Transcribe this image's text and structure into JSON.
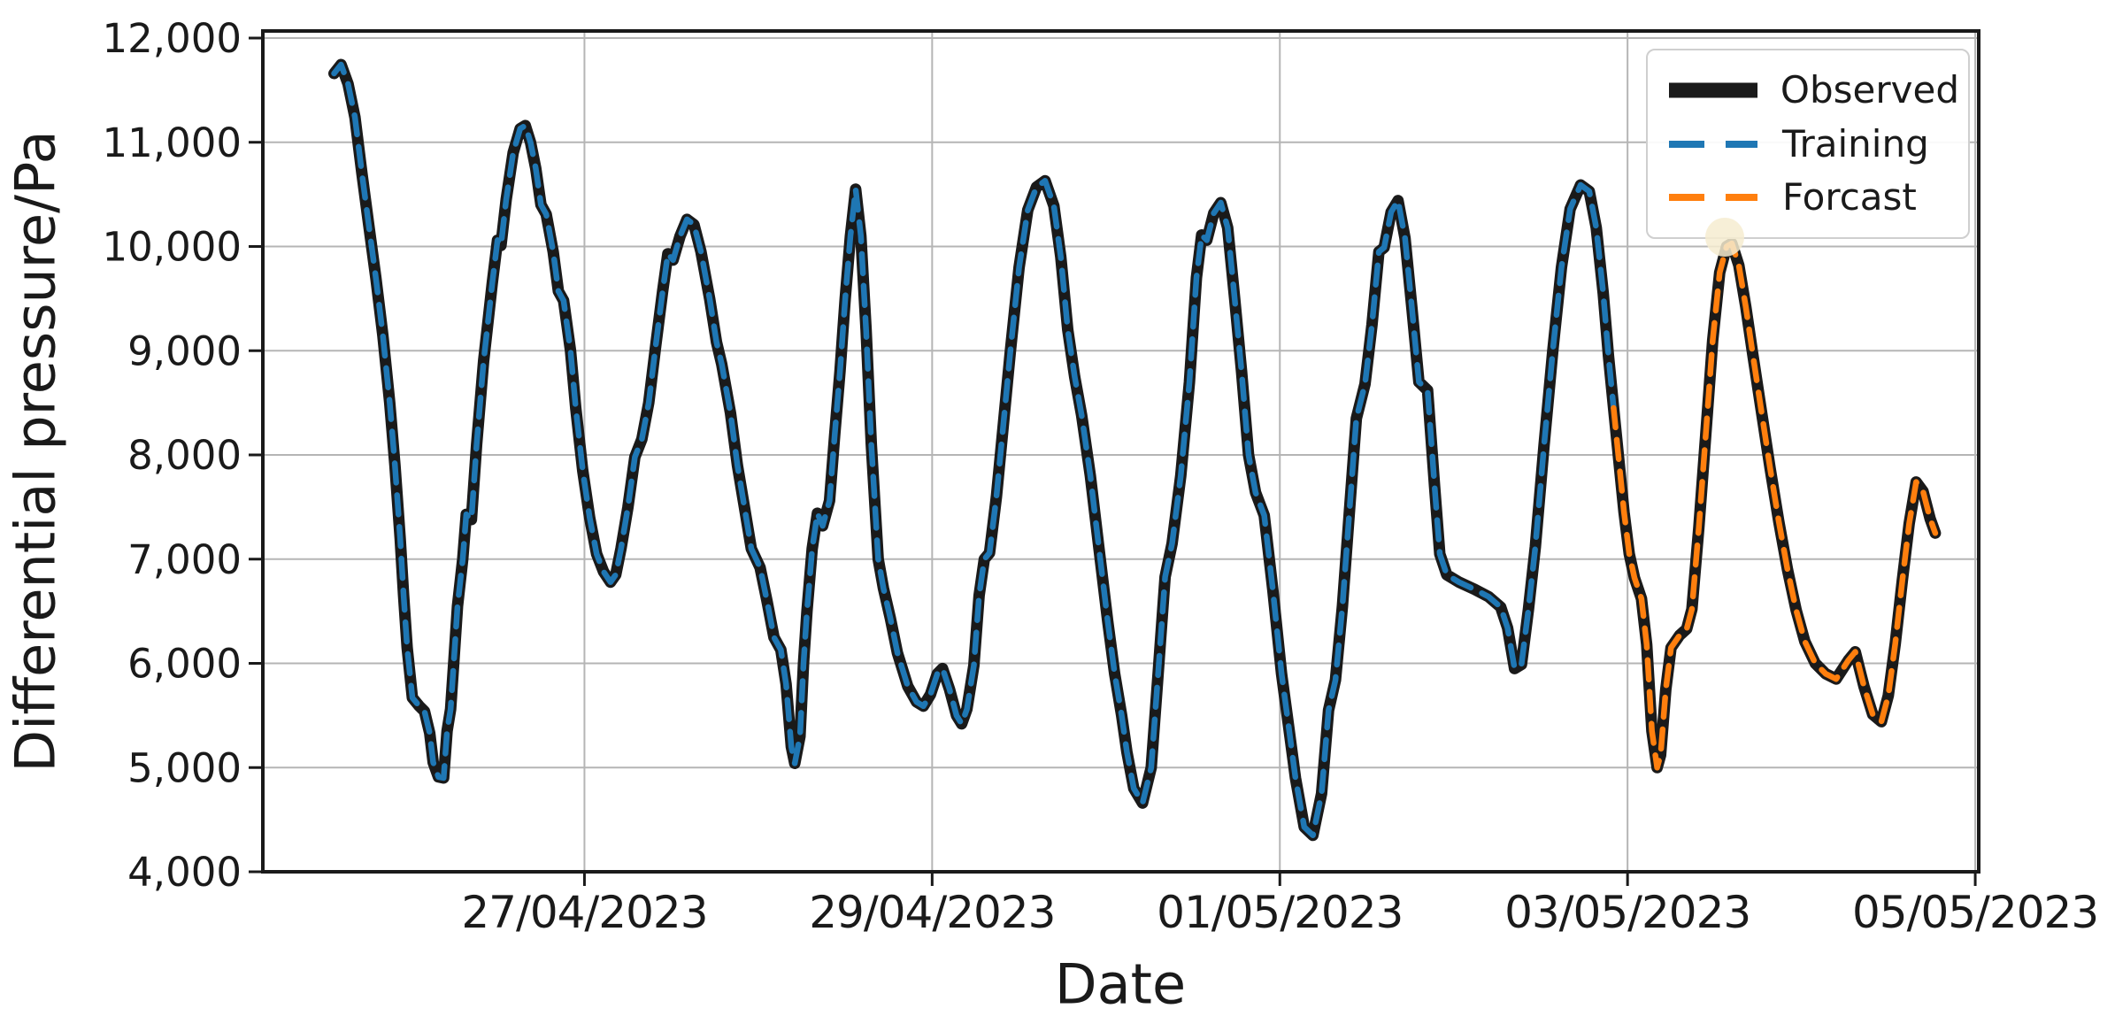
{
  "figure": {
    "background": "#ffffff",
    "grid_color": "#b5b5b5",
    "spine_color": "#1a1a1a",
    "text_color": "#1a1a1a"
  },
  "legend": {
    "position": "upper right",
    "items": [
      {
        "label": "Observed",
        "color": "#1a1a1a",
        "style": "solid"
      },
      {
        "label": "Training",
        "color": "#1f77b4",
        "style": "dashed"
      },
      {
        "label": "Forcast",
        "color": "#ff7f0e",
        "style": "dashed"
      }
    ]
  },
  "chart_data": {
    "type": "line",
    "title": "",
    "xlabel": "Date",
    "ylabel": "Differential pressure/Pa",
    "x_unit": "days since 27/04/2023 00:00",
    "xlim": [
      -1.85,
      8.02
    ],
    "ylim": [
      4000,
      12000
    ],
    "grid": true,
    "legend_position": "upper right",
    "xticks": [
      {
        "t": 0,
        "label": "27/04/2023"
      },
      {
        "t": 2,
        "label": "29/04/2023"
      },
      {
        "t": 4,
        "label": "01/05/2023"
      },
      {
        "t": 6,
        "label": "03/05/2023"
      },
      {
        "t": 8,
        "label": "05/05/2023"
      }
    ],
    "yticks": [
      {
        "v": 4000,
        "label": "4,000"
      },
      {
        "v": 5000,
        "label": "5,000"
      },
      {
        "v": 6000,
        "label": "6,000"
      },
      {
        "v": 7000,
        "label": "7,000"
      },
      {
        "v": 8000,
        "label": "8,000"
      },
      {
        "v": 9000,
        "label": "9,000"
      },
      {
        "v": 10000,
        "label": "10,000"
      },
      {
        "v": 11000,
        "label": "11,000"
      },
      {
        "v": 12000,
        "label": "12,000"
      }
    ],
    "series": [
      {
        "name": "Observed",
        "color": "#1a1a1a",
        "line": "solid",
        "width": 13,
        "points": "training+forecast"
      },
      {
        "name": "Training",
        "color": "#1f77b4",
        "line": "dashed",
        "width": 6.5,
        "points": "training"
      },
      {
        "name": "Forcast",
        "color": "#ff7f0e",
        "line": "dashed",
        "width": 6.5,
        "points": "forecast"
      }
    ],
    "annotations": [
      {
        "type": "circle-marker",
        "t": 6.56,
        "value": 10090,
        "color": "#f6ecd0"
      }
    ],
    "points": {
      "training": [
        [
          -1.44,
          11660
        ],
        [
          -1.4,
          11745
        ],
        [
          -1.36,
          11560
        ],
        [
          -1.32,
          11240
        ],
        [
          -1.28,
          10700
        ],
        [
          -1.24,
          10200
        ],
        [
          -1.2,
          9700
        ],
        [
          -1.16,
          9150
        ],
        [
          -1.12,
          8500
        ],
        [
          -1.09,
          7900
        ],
        [
          -1.06,
          7200
        ],
        [
          -1.04,
          6650
        ],
        [
          -1.02,
          6150
        ],
        [
          -0.99,
          5670
        ],
        [
          -0.95,
          5590
        ],
        [
          -0.92,
          5540
        ],
        [
          -0.89,
          5330
        ],
        [
          -0.87,
          5050
        ],
        [
          -0.84,
          4910
        ],
        [
          -0.81,
          4900
        ],
        [
          -0.79,
          5350
        ],
        [
          -0.77,
          5560
        ],
        [
          -0.75,
          6050
        ],
        [
          -0.73,
          6550
        ],
        [
          -0.7,
          7000
        ],
        [
          -0.68,
          7430
        ],
        [
          -0.65,
          7380
        ],
        [
          -0.62,
          8100
        ],
        [
          -0.58,
          8900
        ],
        [
          -0.53,
          9650
        ],
        [
          -0.5,
          10060
        ],
        [
          -0.48,
          10010
        ],
        [
          -0.45,
          10450
        ],
        [
          -0.41,
          10900
        ],
        [
          -0.37,
          11130
        ],
        [
          -0.34,
          11160
        ],
        [
          -0.31,
          11000
        ],
        [
          -0.28,
          10750
        ],
        [
          -0.25,
          10400
        ],
        [
          -0.22,
          10310
        ],
        [
          -0.18,
          9950
        ],
        [
          -0.15,
          9570
        ],
        [
          -0.12,
          9480
        ],
        [
          -0.08,
          9000
        ],
        [
          -0.05,
          8450
        ],
        [
          -0.01,
          7850
        ],
        [
          0.03,
          7400
        ],
        [
          0.07,
          7050
        ],
        [
          0.11,
          6880
        ],
        [
          0.15,
          6780
        ],
        [
          0.18,
          6850
        ],
        [
          0.21,
          7100
        ],
        [
          0.25,
          7500
        ],
        [
          0.29,
          7980
        ],
        [
          0.33,
          8150
        ],
        [
          0.37,
          8500
        ],
        [
          0.41,
          9050
        ],
        [
          0.45,
          9570
        ],
        [
          0.48,
          9930
        ],
        [
          0.51,
          9870
        ],
        [
          0.55,
          10100
        ],
        [
          0.59,
          10260
        ],
        [
          0.63,
          10210
        ],
        [
          0.67,
          9950
        ],
        [
          0.72,
          9500
        ],
        [
          0.76,
          9080
        ],
        [
          0.79,
          8870
        ],
        [
          0.84,
          8400
        ],
        [
          0.88,
          7900
        ],
        [
          0.92,
          7500
        ],
        [
          0.96,
          7100
        ],
        [
          1.01,
          6920
        ],
        [
          1.05,
          6600
        ],
        [
          1.09,
          6250
        ],
        [
          1.13,
          6130
        ],
        [
          1.16,
          5800
        ],
        [
          1.19,
          5200
        ],
        [
          1.21,
          5040
        ],
        [
          1.24,
          5300
        ],
        [
          1.26,
          6000
        ],
        [
          1.28,
          6500
        ],
        [
          1.31,
          7100
        ],
        [
          1.34,
          7440
        ],
        [
          1.37,
          7320
        ],
        [
          1.41,
          7560
        ],
        [
          1.44,
          8200
        ],
        [
          1.47,
          8800
        ],
        [
          1.5,
          9500
        ],
        [
          1.53,
          10100
        ],
        [
          1.56,
          10550
        ],
        [
          1.59,
          10100
        ],
        [
          1.62,
          9200
        ],
        [
          1.65,
          8100
        ],
        [
          1.69,
          7000
        ],
        [
          1.72,
          6720
        ],
        [
          1.76,
          6430
        ],
        [
          1.8,
          6100
        ],
        [
          1.86,
          5780
        ],
        [
          1.91,
          5630
        ],
        [
          1.95,
          5590
        ],
        [
          1.99,
          5700
        ],
        [
          2.03,
          5900
        ],
        [
          2.06,
          5950
        ],
        [
          2.1,
          5750
        ],
        [
          2.14,
          5500
        ],
        [
          2.17,
          5420
        ],
        [
          2.2,
          5560
        ],
        [
          2.24,
          5980
        ],
        [
          2.27,
          6650
        ],
        [
          2.3,
          7000
        ],
        [
          2.33,
          7060
        ],
        [
          2.37,
          7600
        ],
        [
          2.41,
          8300
        ],
        [
          2.45,
          9000
        ],
        [
          2.5,
          9800
        ],
        [
          2.55,
          10350
        ],
        [
          2.6,
          10570
        ],
        [
          2.65,
          10630
        ],
        [
          2.7,
          10390
        ],
        [
          2.74,
          9900
        ],
        [
          2.78,
          9200
        ],
        [
          2.82,
          8750
        ],
        [
          2.86,
          8380
        ],
        [
          2.91,
          7800
        ],
        [
          2.96,
          7100
        ],
        [
          3.01,
          6400
        ],
        [
          3.05,
          5900
        ],
        [
          3.09,
          5500
        ],
        [
          3.12,
          5150
        ],
        [
          3.16,
          4800
        ],
        [
          3.21,
          4660
        ],
        [
          3.26,
          5000
        ],
        [
          3.3,
          5900
        ],
        [
          3.34,
          6830
        ],
        [
          3.38,
          7150
        ],
        [
          3.43,
          7800
        ],
        [
          3.48,
          8700
        ],
        [
          3.52,
          9700
        ],
        [
          3.55,
          10110
        ],
        [
          3.58,
          10060
        ],
        [
          3.62,
          10320
        ],
        [
          3.66,
          10420
        ],
        [
          3.7,
          10180
        ],
        [
          3.74,
          9500
        ],
        [
          3.78,
          8800
        ],
        [
          3.82,
          8000
        ],
        [
          3.86,
          7640
        ],
        [
          3.91,
          7420
        ],
        [
          3.96,
          6700
        ],
        [
          4.01,
          5900
        ],
        [
          4.05,
          5400
        ],
        [
          4.09,
          4900
        ],
        [
          4.14,
          4430
        ],
        [
          4.19,
          4350
        ],
        [
          4.24,
          4750
        ],
        [
          4.28,
          5550
        ],
        [
          4.32,
          5840
        ],
        [
          4.36,
          6550
        ],
        [
          4.4,
          7450
        ],
        [
          4.44,
          8350
        ],
        [
          4.49,
          8680
        ],
        [
          4.53,
          9250
        ],
        [
          4.57,
          9950
        ],
        [
          4.6,
          9990
        ],
        [
          4.64,
          10330
        ],
        [
          4.68,
          10440
        ],
        [
          4.72,
          10080
        ],
        [
          4.76,
          9400
        ],
        [
          4.8,
          8700
        ],
        [
          4.85,
          8620
        ],
        [
          4.89,
          7700
        ],
        [
          4.92,
          7050
        ],
        [
          4.96,
          6850
        ],
        [
          5.03,
          6780
        ],
        [
          5.12,
          6710
        ],
        [
          5.2,
          6640
        ],
        [
          5.27,
          6540
        ],
        [
          5.31,
          6340
        ],
        [
          5.35,
          5950
        ],
        [
          5.39,
          5990
        ],
        [
          5.43,
          6520
        ],
        [
          5.47,
          7120
        ],
        [
          5.52,
          8100
        ],
        [
          5.57,
          9000
        ],
        [
          5.62,
          9800
        ],
        [
          5.67,
          10360
        ],
        [
          5.73,
          10590
        ],
        [
          5.78,
          10530
        ],
        [
          5.82,
          10180
        ],
        [
          5.86,
          9550
        ],
        [
          5.89,
          8950
        ],
        [
          5.92,
          8450
        ]
      ],
      "forecast": [
        [
          5.92,
          8450
        ],
        [
          5.95,
          7950
        ],
        [
          5.98,
          7450
        ],
        [
          6.01,
          7050
        ],
        [
          6.04,
          6820
        ],
        [
          6.08,
          6620
        ],
        [
          6.11,
          6180
        ],
        [
          6.14,
          5350
        ],
        [
          6.17,
          5000
        ],
        [
          6.19,
          5120
        ],
        [
          6.22,
          5750
        ],
        [
          6.25,
          6150
        ],
        [
          6.3,
          6270
        ],
        [
          6.34,
          6330
        ],
        [
          6.37,
          6520
        ],
        [
          6.41,
          7300
        ],
        [
          6.45,
          8200
        ],
        [
          6.49,
          9100
        ],
        [
          6.53,
          9750
        ],
        [
          6.57,
          10000
        ],
        [
          6.6,
          10030
        ],
        [
          6.64,
          9820
        ],
        [
          6.68,
          9420
        ],
        [
          6.72,
          8970
        ],
        [
          6.77,
          8420
        ],
        [
          6.82,
          7870
        ],
        [
          6.87,
          7360
        ],
        [
          6.92,
          6900
        ],
        [
          6.97,
          6510
        ],
        [
          7.02,
          6210
        ],
        [
          7.08,
          6000
        ],
        [
          7.14,
          5900
        ],
        [
          7.2,
          5850
        ],
        [
          7.27,
          6030
        ],
        [
          7.31,
          6110
        ],
        [
          7.36,
          5780
        ],
        [
          7.41,
          5510
        ],
        [
          7.46,
          5440
        ],
        [
          7.5,
          5690
        ],
        [
          7.54,
          6190
        ],
        [
          7.58,
          6790
        ],
        [
          7.62,
          7340
        ],
        [
          7.66,
          7740
        ],
        [
          7.7,
          7650
        ],
        [
          7.74,
          7390
        ],
        [
          7.77,
          7250
        ]
      ]
    }
  }
}
